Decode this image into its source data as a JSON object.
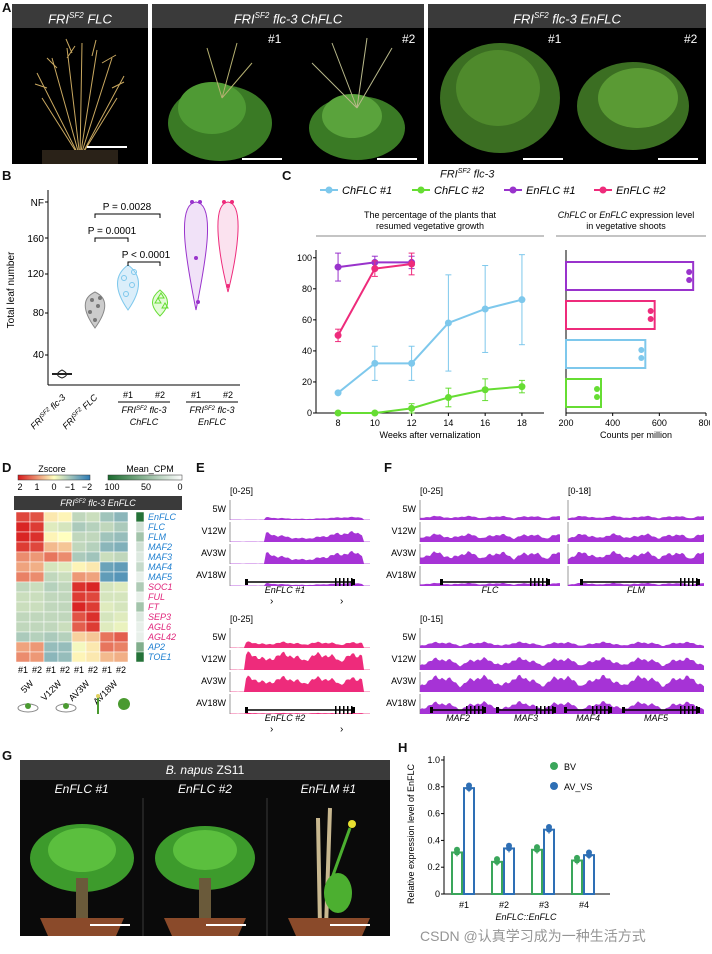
{
  "panelA": {
    "letter": "A",
    "headers": [
      "FRI",
      "flc-3 ChFLC",
      "flc-3 EnFLC"
    ],
    "header1_main": "FRI",
    "header1_sup": "SF2",
    "header1_tail": " FLC",
    "header2_main": "FRI",
    "header2_sup": "SF2",
    "header2_tail": " flc-3 ChFLC",
    "header3_main": "FRI",
    "header3_sup": "SF2",
    "header3_tail": " flc-3 EnFLC",
    "reps": [
      "#1",
      "#2",
      "#1",
      "#2"
    ]
  },
  "panelB": {
    "letter": "B",
    "ylabel": "Total leaf number",
    "yticks": [
      "40",
      "80",
      "120",
      "160",
      "NF"
    ],
    "pvals": [
      "P = 0.0028",
      "P = 0.0001",
      "P < 0.0001"
    ],
    "xlabels": [
      "flc-3",
      "FLC",
      "#1",
      "#2",
      "#1",
      "#2"
    ],
    "group_chflc": "ChFLC",
    "group_enflc": "EnFLC",
    "fri": "FRI",
    "sf2": "SF2",
    "flc3": "flc-3"
  },
  "panelC": {
    "letter": "C",
    "title_main": "FRI",
    "title_sup": "SF2",
    "title_tail": " flc-3",
    "legend": [
      "ChFLC #1",
      "ChFLC #2",
      "EnFLC #1",
      "EnFLC #2"
    ],
    "colors": {
      "ch1": "#7ec8ec",
      "ch2": "#66dd33",
      "en1": "#9933cc",
      "en2": "#ee2b7b"
    },
    "left_title_1": "The percentage of the plants that",
    "left_title_2": "resumed vegetative growth",
    "right_title_1_a": "ChFLC",
    "right_title_1_b": " or ",
    "right_title_1_c": "EnFLC",
    "right_title_1_d": " expression level",
    "right_title_2": "in vegetative shoots",
    "xlabel_left": "Weeks after vernalization",
    "xlabel_right": "Counts per million",
    "xticks_left": [
      "8",
      "10",
      "12",
      "14",
      "16",
      "18"
    ],
    "yticks_left": [
      "0",
      "20",
      "40",
      "60",
      "80",
      "100"
    ],
    "xticks_right": [
      "200",
      "400",
      "600",
      "800"
    ]
  },
  "chart_data": [
    {
      "type": "line",
      "title": "The percentage of the plants that resumed vegetative growth",
      "xlabel": "Weeks after vernalization",
      "ylabel": "",
      "ylim": [
        0,
        100
      ],
      "series": [
        {
          "name": "ChFLC #1",
          "x": [
            8,
            10,
            12,
            14,
            16,
            18
          ],
          "values": [
            13,
            32,
            32,
            58,
            67,
            73
          ],
          "err": [
            0,
            11,
            11,
            31,
            28,
            29
          ]
        },
        {
          "name": "ChFLC #2",
          "x": [
            8,
            10,
            12,
            14,
            16,
            18
          ],
          "values": [
            0,
            0,
            3,
            10,
            15,
            17
          ],
          "err": [
            0,
            0,
            3,
            6,
            7,
            4
          ]
        },
        {
          "name": "EnFLC #1",
          "x": [
            8,
            10,
            12
          ],
          "values": [
            94,
            97,
            97
          ],
          "err": [
            9,
            4,
            4
          ]
        },
        {
          "name": "EnFLC #2",
          "x": [
            8,
            10,
            12
          ],
          "values": [
            50,
            93,
            96
          ],
          "err": [
            4,
            5,
            7
          ]
        }
      ]
    },
    {
      "type": "bar",
      "title": "ChFLC or EnFLC expression level in vegetative shoots",
      "xlabel": "Counts per million",
      "categories": [
        "EnFLC #1",
        "EnFLC #2",
        "ChFLC #1",
        "ChFLC #2"
      ],
      "values": [
        745,
        580,
        540,
        350
      ],
      "xlim": [
        200,
        800
      ]
    },
    {
      "type": "bar",
      "title": "",
      "ylabel": "Relative expression level of EnFLC",
      "ylim": [
        0,
        1.0
      ],
      "categories": [
        "#1",
        "#2",
        "#3",
        "#4"
      ],
      "series": [
        {
          "name": "BV",
          "values": [
            0.31,
            0.24,
            0.33,
            0.25
          ]
        },
        {
          "name": "AV_VS",
          "values": [
            0.79,
            0.34,
            0.48,
            0.29
          ]
        }
      ]
    }
  ],
  "panelD": {
    "letter": "D",
    "zscore_label": "Zscore",
    "zscore_ticks": [
      "2",
      "1",
      "0",
      "−1",
      "−2"
    ],
    "cpm_label": "Mean_CPM",
    "cpm_ticks": [
      "100",
      "50",
      "0"
    ],
    "header_main": "FRI",
    "header_sup": "SF2",
    "header_tail": " flc-3 EnFLC",
    "genes_blue": [
      "EnFLC",
      "FLC",
      "FLM",
      "MAF2",
      "MAF3",
      "MAF4",
      "MAF5"
    ],
    "genes_pink": [
      "SOC1",
      "FUL",
      "FT",
      "SEP3",
      "AGL6",
      "AGL42"
    ],
    "genes_blue2": [
      "AP2",
      "TOE1"
    ],
    "cols": [
      "#1",
      "#2",
      "#1",
      "#2",
      "#1",
      "#2",
      "#1",
      "#2"
    ],
    "stages": [
      "5W",
      "V12W",
      "AV3W",
      "AV18W"
    ]
  },
  "panelE": {
    "letter": "E",
    "range1": "[0-25]",
    "range2": "[0-25]",
    "tracks": [
      "5W",
      "V12W",
      "AV3W",
      "AV18W"
    ],
    "gene1": "EnFLC #1",
    "gene2": "EnFLC #2"
  },
  "panelF": {
    "letter": "F",
    "range1": "[0-25]",
    "range1b": "[0-18]",
    "range2": "[0-15]",
    "tracks": [
      "5W",
      "V12W",
      "AV3W",
      "AV18W"
    ],
    "genes_top": [
      "FLC",
      "FLM"
    ],
    "genes_bottom": [
      "MAF2",
      "MAF3",
      "MAF4",
      "MAF5"
    ]
  },
  "panelG": {
    "letter": "G",
    "header": "B. napus",
    "header_tail": "  ZS11",
    "labels": [
      "EnFLC #1",
      "EnFLC #2",
      "EnFLM #1"
    ]
  },
  "panelH": {
    "letter": "H",
    "ylabel": "Relative expression level of EnFLC",
    "yticks": [
      "0",
      "0.2",
      "0.4",
      "0.6",
      "0.8",
      "1.0"
    ],
    "legend": [
      "BV",
      "AV_VS"
    ],
    "xlabels": [
      "#1",
      "#2",
      "#3",
      "#4"
    ],
    "xtitle": "EnFLC::EnFLC",
    "colors": {
      "bv": "#3aa65b",
      "av": "#2e6fb5"
    }
  },
  "watermark": "CSDN @认真学习成为一种生活方式"
}
